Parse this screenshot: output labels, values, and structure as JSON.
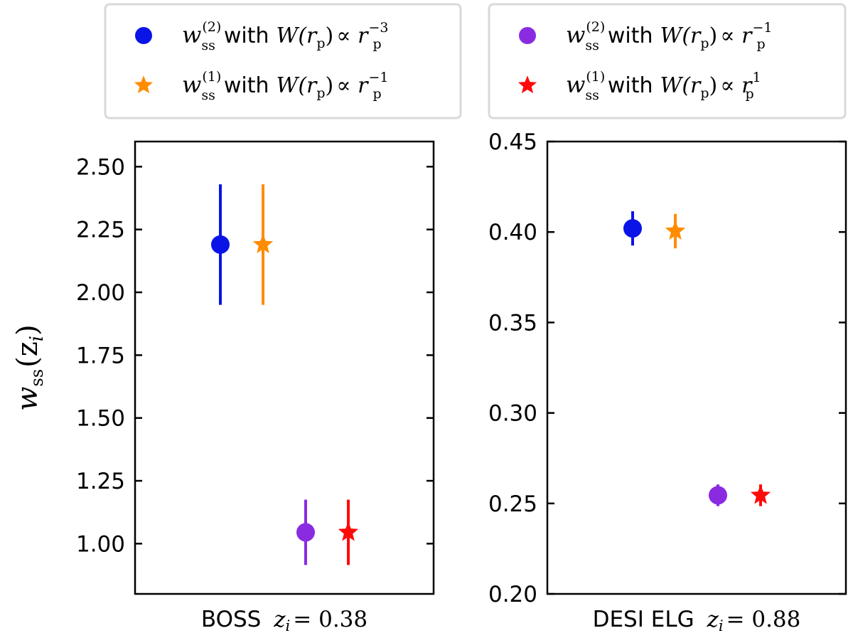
{
  "legend": {
    "left": [
      {
        "marker": "circle",
        "color": "#0a14e6",
        "symbol": "w",
        "sub": "ss",
        "sup": "(2)",
        "connector": "with",
        "w_label": "W(r",
        "p_sub": "p",
        "prop": "∝ r",
        "exp": "−3"
      },
      {
        "marker": "star",
        "color": "#ff8c00",
        "symbol": "w",
        "sub": "ss",
        "sup": "(1)",
        "connector": "with",
        "w_label": "W(r",
        "p_sub": "p",
        "prop": "∝ r",
        "exp": "−1"
      }
    ],
    "right": [
      {
        "marker": "circle",
        "color": "#8a2be2",
        "symbol": "w",
        "sub": "ss",
        "sup": "(2)",
        "connector": "with",
        "w_label": "W(r",
        "p_sub": "p",
        "prop": "∝ r",
        "exp": "−1"
      },
      {
        "marker": "star",
        "color": "#ff0a0a",
        "symbol": "w",
        "sub": "ss",
        "sup": "(1)",
        "connector": "with",
        "w_label": "W(r",
        "p_sub": "p",
        "prop": "∝ r",
        "exp": "1"
      }
    ]
  },
  "chart_data": [
    {
      "type": "scatter",
      "title": "",
      "xlabel_text": "BOSS",
      "xlabel_math": "z",
      "xlabel_sub": "i",
      "xlabel_value": "= 0.38",
      "ylabel_symbol": "w",
      "ylabel_sub": "ss",
      "ylabel_arg": "(z",
      "ylabel_arg_sub": "i",
      "ylabel_close": ")",
      "ylim": [
        0.8,
        2.6
      ],
      "xlim": [
        0,
        5
      ],
      "yticks": [
        1.0,
        1.25,
        1.5,
        1.75,
        2.0,
        2.25,
        2.5
      ],
      "ytick_labels": [
        "1.00",
        "1.25",
        "1.50",
        "1.75",
        "2.00",
        "2.25",
        "2.50"
      ],
      "points": [
        {
          "x": 1.0,
          "y": 2.19,
          "yerr": 0.24,
          "marker": "circle",
          "color": "#0a14e6"
        },
        {
          "x": 1.5,
          "y": 2.19,
          "yerr": 0.24,
          "marker": "star",
          "color": "#ff8c00"
        },
        {
          "x": 2.5,
          "y": 1.045,
          "yerr": 0.13,
          "marker": "circle",
          "color": "#8a2be2"
        },
        {
          "x": 3.0,
          "y": 1.045,
          "yerr": 0.13,
          "marker": "star",
          "color": "#ff0a0a"
        }
      ]
    },
    {
      "type": "scatter",
      "title": "",
      "xlabel_text": "DESI ELG",
      "xlabel_math": "z",
      "xlabel_sub": "i",
      "xlabel_value": "= 0.88",
      "ylim": [
        0.2,
        0.45
      ],
      "xlim": [
        0,
        5
      ],
      "yticks": [
        0.2,
        0.25,
        0.3,
        0.35,
        0.4,
        0.45
      ],
      "ytick_labels": [
        "0.20",
        "0.25",
        "0.30",
        "0.35",
        "0.40",
        "0.45"
      ],
      "points": [
        {
          "x": 1.0,
          "y": 0.402,
          "yerr": 0.0095,
          "marker": "circle",
          "color": "#0a14e6"
        },
        {
          "x": 1.5,
          "y": 0.4005,
          "yerr": 0.0095,
          "marker": "star",
          "color": "#ff8c00"
        },
        {
          "x": 2.5,
          "y": 0.2545,
          "yerr": 0.006,
          "marker": "circle",
          "color": "#8a2be2"
        },
        {
          "x": 3.0,
          "y": 0.2545,
          "yerr": 0.006,
          "marker": "star",
          "color": "#ff0a0a"
        }
      ]
    }
  ]
}
